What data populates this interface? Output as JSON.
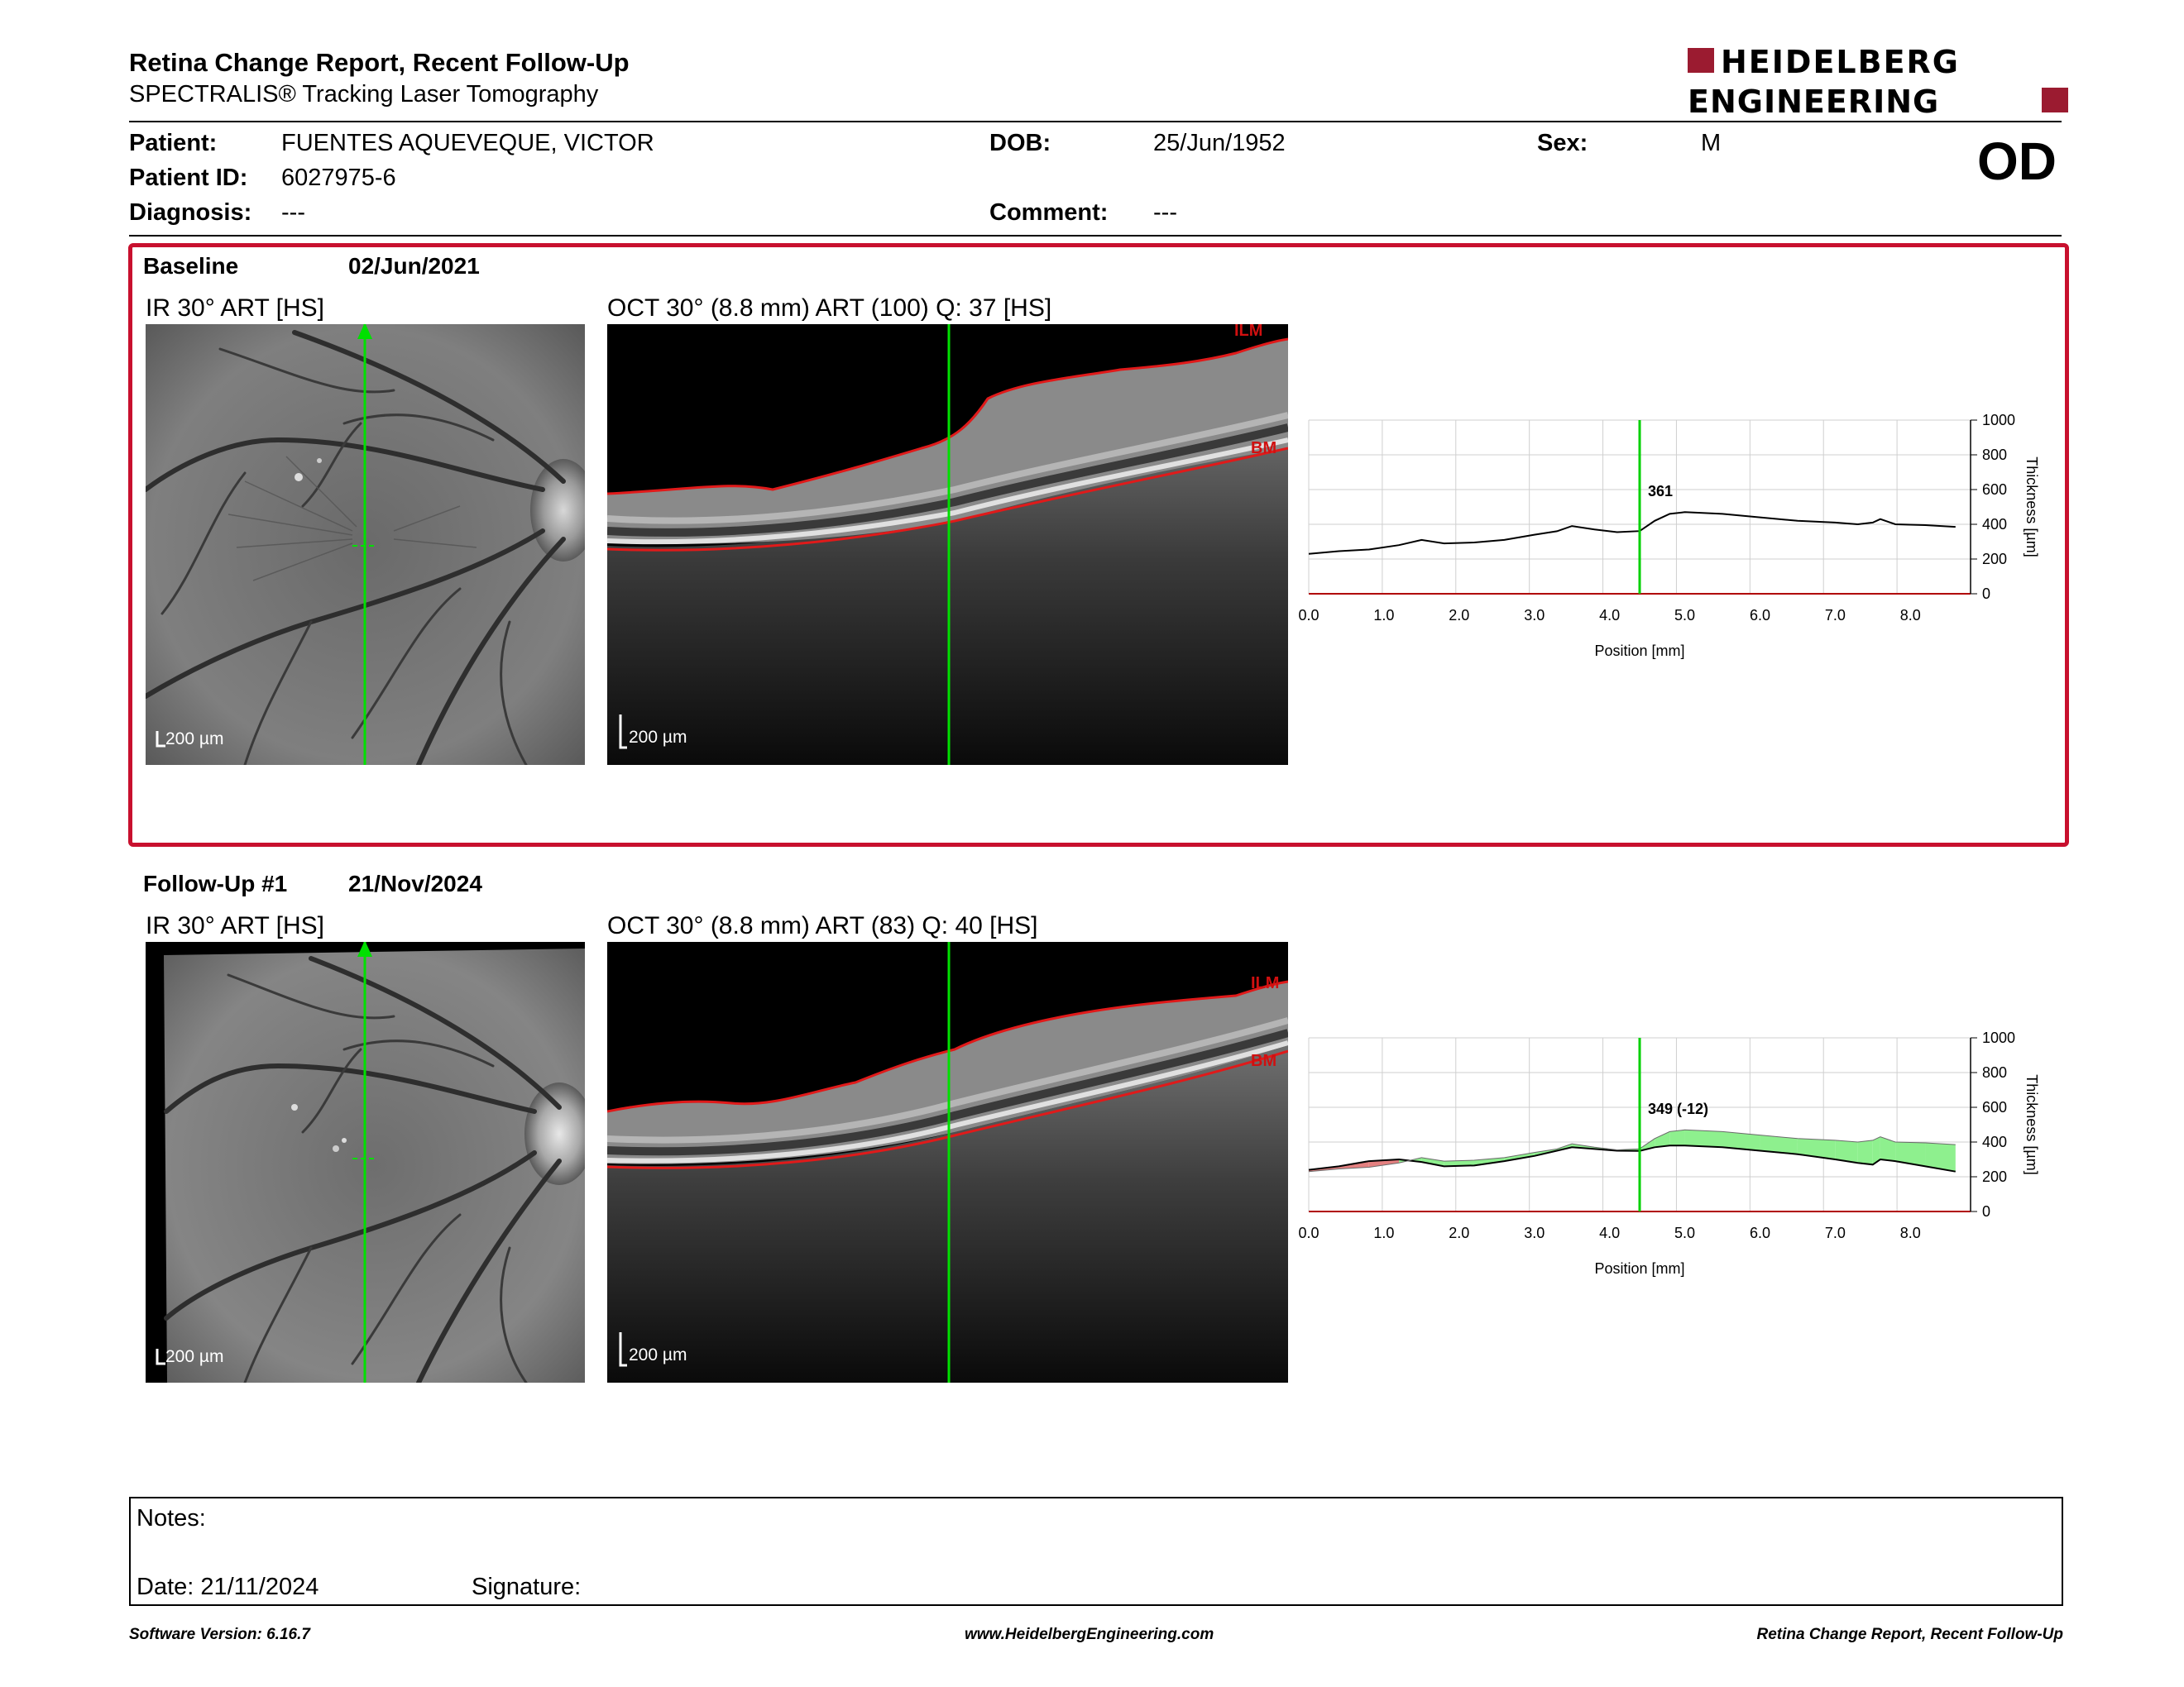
{
  "header": {
    "title": "Retina Change Report, Recent Follow-Up",
    "subtitle": "SPECTRALIS® Tracking Laser Tomography",
    "logo_line1": "HEIDELBERG",
    "logo_line2": "ENGINEERING"
  },
  "patient": {
    "patient_label": "Patient:",
    "patient_value": "FUENTES AQUEVEQUE, VICTOR",
    "id_label": "Patient ID:",
    "id_value": "6027975-6",
    "diagnosis_label": "Diagnosis:",
    "diagnosis_value": "---",
    "dob_label": "DOB:",
    "dob_value": "25/Jun/1952",
    "comment_label": "Comment:",
    "comment_value": "---",
    "sex_label": "Sex:",
    "sex_value": "M",
    "eye": "OD"
  },
  "baseline": {
    "label": "Baseline",
    "date": "02/Jun/2021",
    "ir_title": "IR 30° ART [HS]",
    "oct_title": "OCT 30° (8.8 mm) ART (100) Q: 37 [HS]",
    "ir_scale": "200 µm",
    "oct_scale": "200 µm",
    "ilm_label": "ILM",
    "bm_label": "BM",
    "marker_value": "361"
  },
  "followup": {
    "label": "Follow-Up #1",
    "date": "21/Nov/2024",
    "ir_title": "IR 30° ART [HS]",
    "oct_title": "OCT 30° (8.8 mm) ART (83) Q: 40 [HS]",
    "ir_scale": "200 µm",
    "oct_scale": "200 µm",
    "ilm_label": "ILM",
    "bm_label": "BM",
    "marker_value": "349 (-12)"
  },
  "chart_data": [
    {
      "type": "line",
      "xlabel": "Position [mm]",
      "ylabel": "Thickness [µm]",
      "xlim": [
        0,
        8.8
      ],
      "ylim": [
        0,
        1000
      ],
      "x_ticks": [
        "0.0",
        "1.0",
        "2.0",
        "3.0",
        "4.0",
        "5.0",
        "6.0",
        "7.0",
        "8.0"
      ],
      "y_ticks": [
        "0",
        "200",
        "400",
        "600",
        "800",
        "1000"
      ],
      "marker_x": 4.4,
      "series": [
        {
          "x": [
            0,
            0.4,
            0.8,
            1.2,
            1.5,
            1.8,
            2.2,
            2.6,
            3.0,
            3.3,
            3.5,
            3.8,
            4.1,
            4.4,
            4.6,
            4.8,
            5.0,
            5.5,
            6.0,
            6.5,
            7.0,
            7.3,
            7.5,
            7.6,
            7.8,
            8.2,
            8.6
          ],
          "y": [
            230,
            245,
            255,
            280,
            310,
            290,
            295,
            310,
            340,
            360,
            390,
            370,
            355,
            361,
            420,
            460,
            470,
            460,
            440,
            420,
            410,
            400,
            410,
            430,
            400,
            395,
            385
          ]
        }
      ]
    },
    {
      "type": "area",
      "xlabel": "Position [mm]",
      "ylabel": "Thickness [µm]",
      "xlim": [
        0,
        8.8
      ],
      "ylim": [
        0,
        1000
      ],
      "x_ticks": [
        "0.0",
        "1.0",
        "2.0",
        "3.0",
        "4.0",
        "5.0",
        "6.0",
        "7.0",
        "8.0"
      ],
      "y_ticks": [
        "0",
        "200",
        "400",
        "600",
        "800",
        "1000"
      ],
      "marker_x": 4.4,
      "series": [
        {
          "x": [
            0,
            0.4,
            0.8,
            1.2,
            1.5,
            1.8,
            2.2,
            2.6,
            3.0,
            3.3,
            3.5,
            3.8,
            4.1,
            4.4,
            4.6,
            4.8,
            5.0,
            5.5,
            6.0,
            6.5,
            7.0,
            7.3,
            7.5,
            7.6,
            7.8,
            8.2,
            8.6
          ],
          "y": [
            230,
            245,
            255,
            280,
            310,
            290,
            295,
            310,
            340,
            360,
            390,
            370,
            355,
            361,
            420,
            460,
            470,
            460,
            440,
            420,
            410,
            400,
            410,
            430,
            400,
            395,
            385
          ]
        },
        {
          "x": [
            0,
            0.4,
            0.8,
            1.2,
            1.5,
            1.8,
            2.2,
            2.6,
            3.0,
            3.3,
            3.5,
            3.8,
            4.1,
            4.4,
            4.6,
            4.8,
            5.0,
            5.5,
            6.0,
            6.5,
            7.0,
            7.3,
            7.5,
            7.6,
            7.8,
            8.2,
            8.6
          ],
          "y": [
            240,
            260,
            290,
            300,
            285,
            260,
            265,
            290,
            320,
            350,
            370,
            360,
            350,
            349,
            370,
            380,
            380,
            370,
            350,
            330,
            300,
            280,
            270,
            300,
            290,
            260,
            230
          ]
        }
      ]
    }
  ],
  "notes": {
    "notes_label": "Notes:",
    "date_label": "Date: 21/11/2024",
    "signature_label": "Signature:"
  },
  "footer": {
    "left": "Software Version: 6.16.7",
    "center": "www.HeidelbergEngineering.com",
    "right": "Retina Change Report, Recent Follow-Up"
  }
}
